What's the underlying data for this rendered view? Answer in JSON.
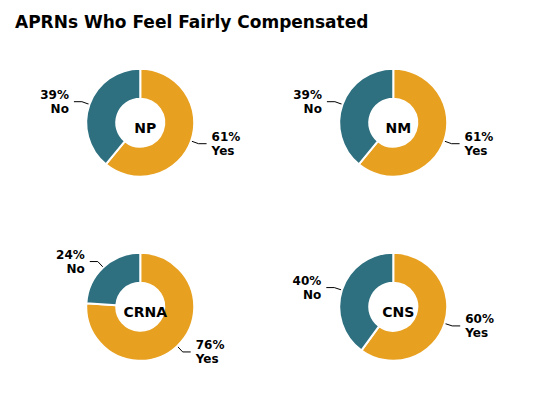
{
  "title": "APRNs Who Feel Fairly Compensated",
  "chart_data": [
    {
      "type": "pie",
      "title": "NP",
      "categories": [
        "Yes",
        "No"
      ],
      "values": [
        61,
        39
      ],
      "value_labels": [
        "61%",
        "39%"
      ],
      "colors": [
        "#e8a020",
        "#2e7080"
      ],
      "data_labels": true
    },
    {
      "type": "pie",
      "title": "NM",
      "categories": [
        "Yes",
        "No"
      ],
      "values": [
        61,
        39
      ],
      "value_labels": [
        "61%",
        "39%"
      ],
      "colors": [
        "#e8a020",
        "#2e7080"
      ],
      "data_labels": true
    },
    {
      "type": "pie",
      "title": "CRNA",
      "categories": [
        "Yes",
        "No"
      ],
      "values": [
        76,
        24
      ],
      "value_labels": [
        "76%",
        "24%"
      ],
      "colors": [
        "#e8a020",
        "#2e7080"
      ],
      "data_labels": true
    },
    {
      "type": "pie",
      "title": "CNS",
      "categories": [
        "Yes",
        "No"
      ],
      "values": [
        60,
        40
      ],
      "value_labels": [
        "60%",
        "40%"
      ],
      "colors": [
        "#e8a020",
        "#2e7080"
      ],
      "data_labels": true
    }
  ]
}
